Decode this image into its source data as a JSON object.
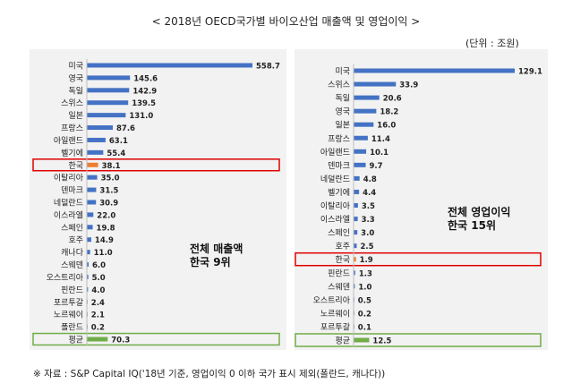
{
  "title": "< 2018년 OECD국가별 바이오산업 매출액 및 영업이익 >",
  "unit": "(단위 : 조원)",
  "source": "※ 자료 : S&P Capital IQ('18년 기준, 영업이익 0 이하 국가 표시 제외(폴란드, 캐나다))",
  "colors": {
    "bar": "#4472c4",
    "korea": "#ed7d31",
    "average": "#70ad47",
    "korea_box": "#e00000",
    "avg_box": "#70ad47",
    "panel": "#f2f2f2"
  },
  "chart_data": [
    {
      "type": "bar",
      "orientation": "horizontal",
      "annotation": "전체 매출액\n한국 9위",
      "annotation_lines": [
        "전체 매출액",
        "한국 9위"
      ],
      "highlight": "한국",
      "average_label": "평균",
      "categories": [
        "미국",
        "영국",
        "독일",
        "스위스",
        "일본",
        "프랑스",
        "아일랜드",
        "벨기에",
        "한국",
        "이탈리아",
        "덴마크",
        "네덜란드",
        "이스라엘",
        "스페인",
        "호주",
        "캐나다",
        "스웨덴",
        "오스트리아",
        "핀란드",
        "포르투갈",
        "노르웨이",
        "폴란드",
        "평균"
      ],
      "values": [
        558.7,
        145.6,
        142.9,
        139.5,
        131.0,
        87.6,
        63.1,
        55.4,
        38.1,
        35.0,
        31.5,
        30.9,
        22.0,
        19.8,
        14.9,
        11.0,
        6.0,
        5.0,
        4.0,
        2.4,
        2.1,
        0.2,
        70.3
      ],
      "value_labels": [
        "558.7",
        "145.6",
        "142.9",
        "139.5",
        "131.0",
        "87.6",
        "63.1",
        "55.4",
        "38.1",
        "35.0",
        "31.5",
        "30.9",
        "22.0",
        "19.8",
        "14.9",
        "11.0",
        "6.0",
        "5.0",
        "4.0",
        "2.4",
        "2.1",
        "0.2",
        "70.3"
      ],
      "xlim": [
        0,
        558.7
      ]
    },
    {
      "type": "bar",
      "orientation": "horizontal",
      "annotation": "전체 영업이익\n한국 15위",
      "annotation_lines": [
        "전체 영업이익",
        "한국 15위"
      ],
      "highlight": "한국",
      "average_label": "평균",
      "categories": [
        "미국",
        "스위스",
        "독일",
        "영국",
        "일본",
        "프랑스",
        "아일랜드",
        "덴마크",
        "네덜란드",
        "벨기에",
        "이탈리아",
        "이스라엘",
        "스페인",
        "호주",
        "한국",
        "핀란드",
        "스웨덴",
        "오스트리아",
        "노르웨이",
        "포르투갈",
        "평균"
      ],
      "values": [
        129.1,
        33.9,
        20.6,
        18.2,
        16.0,
        11.4,
        10.1,
        9.7,
        4.8,
        4.4,
        3.5,
        3.3,
        3.0,
        2.5,
        1.9,
        1.3,
        1.0,
        0.5,
        0.2,
        0.1,
        12.5
      ],
      "value_labels": [
        "129.1",
        "33.9",
        "20.6",
        "18.2",
        "16.0",
        "11.4",
        "10.1",
        "9.7",
        "4.8",
        "4.4",
        "3.5",
        "3.3",
        "3.0",
        "2.5",
        "1.9",
        "1.3",
        "1.0",
        "0.5",
        "0.2",
        "0.1",
        "12.5"
      ],
      "xlim": [
        0,
        129.1
      ]
    }
  ]
}
